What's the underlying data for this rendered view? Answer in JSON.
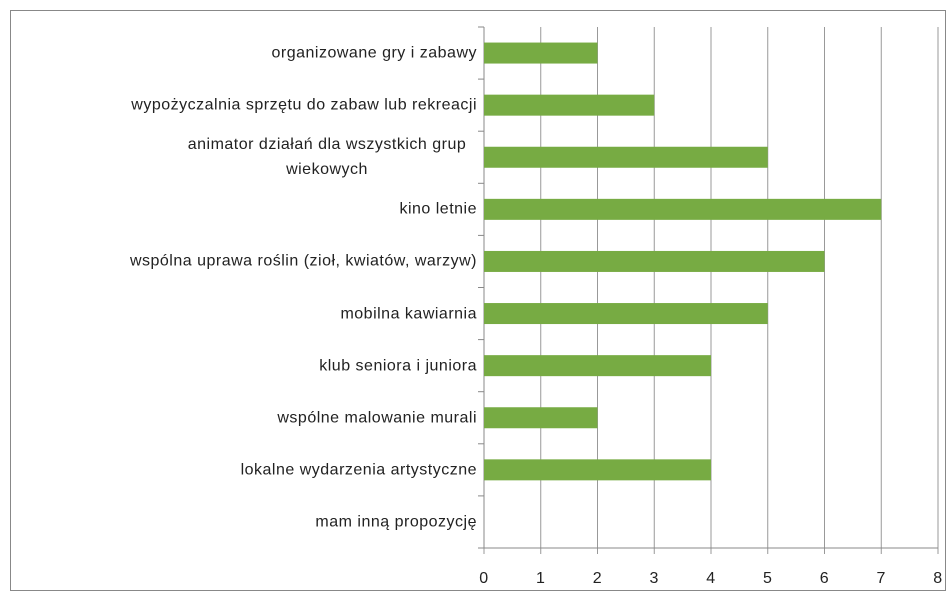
{
  "chart_data": {
    "type": "bar",
    "orientation": "horizontal",
    "categories": [
      "organizowane gry i zabawy",
      "wypożyczalnia sprzętu do zabaw lub rekreacji",
      "animator działań dla wszystkich grup wiekowych",
      "kino letnie",
      "wspólna uprawa roślin (zioł, kwiatów, warzyw)",
      "mobilna kawiarnia",
      "klub seniora i juniora",
      "wspólne malowanie murali",
      "lokalne wydarzenia artystyczne",
      "mam inną propozycję"
    ],
    "values": [
      2,
      3,
      5,
      7,
      6,
      5,
      4,
      2,
      4,
      0
    ],
    "color": "#77ab43",
    "xlim": [
      0,
      8
    ],
    "xticks": [
      0,
      1,
      2,
      3,
      4,
      5,
      6,
      7,
      8
    ],
    "grid": true
  }
}
